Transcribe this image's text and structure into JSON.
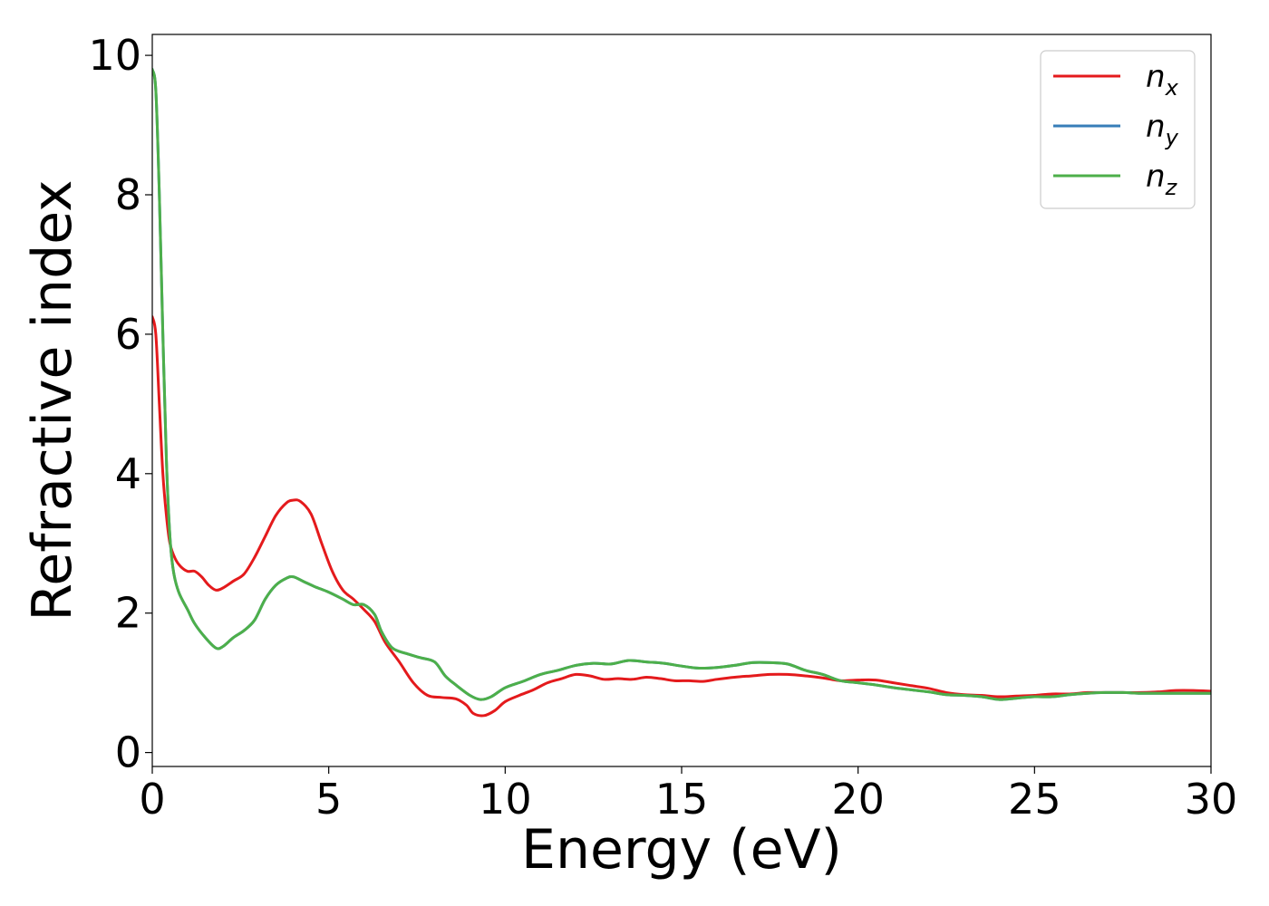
{
  "chart_data": {
    "type": "line",
    "title": "",
    "xlabel": "Energy (eV)",
    "ylabel": "Refractive index",
    "xlim": [
      0,
      30
    ],
    "ylim": [
      -0.2,
      10.3
    ],
    "xticks": [
      0,
      5,
      10,
      15,
      20,
      25,
      30
    ],
    "yticks": [
      0,
      2,
      4,
      6,
      8,
      10
    ],
    "grid": false,
    "legend_position": "top-right",
    "series": [
      {
        "name": "x",
        "legend_base": "n",
        "legend_sub": "x",
        "color": "#e41a1c",
        "points": [
          [
            0,
            6.25
          ],
          [
            0.1,
            6.0
          ],
          [
            0.2,
            5.0
          ],
          [
            0.3,
            4.0
          ],
          [
            0.4,
            3.4
          ],
          [
            0.5,
            3.0
          ],
          [
            0.65,
            2.78
          ],
          [
            0.8,
            2.67
          ],
          [
            1.0,
            2.6
          ],
          [
            1.2,
            2.6
          ],
          [
            1.4,
            2.52
          ],
          [
            1.6,
            2.4
          ],
          [
            1.8,
            2.33
          ],
          [
            2.0,
            2.36
          ],
          [
            2.3,
            2.46
          ],
          [
            2.6,
            2.56
          ],
          [
            2.9,
            2.8
          ],
          [
            3.2,
            3.1
          ],
          [
            3.5,
            3.4
          ],
          [
            3.8,
            3.58
          ],
          [
            4.0,
            3.62
          ],
          [
            4.2,
            3.6
          ],
          [
            4.5,
            3.42
          ],
          [
            4.8,
            3.0
          ],
          [
            5.1,
            2.6
          ],
          [
            5.4,
            2.33
          ],
          [
            5.7,
            2.2
          ],
          [
            6.0,
            2.05
          ],
          [
            6.3,
            1.88
          ],
          [
            6.6,
            1.58
          ],
          [
            7.0,
            1.3
          ],
          [
            7.4,
            1.0
          ],
          [
            7.8,
            0.82
          ],
          [
            8.2,
            0.79
          ],
          [
            8.6,
            0.77
          ],
          [
            8.9,
            0.68
          ],
          [
            9.1,
            0.56
          ],
          [
            9.4,
            0.53
          ],
          [
            9.7,
            0.6
          ],
          [
            10.0,
            0.73
          ],
          [
            10.4,
            0.82
          ],
          [
            10.8,
            0.9
          ],
          [
            11.2,
            1.0
          ],
          [
            11.6,
            1.06
          ],
          [
            12.0,
            1.12
          ],
          [
            12.4,
            1.1
          ],
          [
            12.8,
            1.05
          ],
          [
            13.2,
            1.06
          ],
          [
            13.6,
            1.05
          ],
          [
            14.0,
            1.08
          ],
          [
            14.4,
            1.06
          ],
          [
            14.8,
            1.03
          ],
          [
            15.2,
            1.03
          ],
          [
            15.6,
            1.02
          ],
          [
            16.0,
            1.05
          ],
          [
            16.5,
            1.08
          ],
          [
            17.0,
            1.1
          ],
          [
            17.5,
            1.12
          ],
          [
            18.0,
            1.12
          ],
          [
            18.5,
            1.1
          ],
          [
            19.0,
            1.07
          ],
          [
            19.5,
            1.03
          ],
          [
            20.0,
            1.04
          ],
          [
            20.5,
            1.04
          ],
          [
            21.0,
            1.0
          ],
          [
            21.5,
            0.96
          ],
          [
            22.0,
            0.92
          ],
          [
            22.5,
            0.86
          ],
          [
            23.0,
            0.83
          ],
          [
            23.5,
            0.82
          ],
          [
            24.0,
            0.8
          ],
          [
            24.5,
            0.81
          ],
          [
            25.0,
            0.82
          ],
          [
            25.5,
            0.84
          ],
          [
            26.0,
            0.84
          ],
          [
            26.5,
            0.86
          ],
          [
            27.0,
            0.86
          ],
          [
            27.5,
            0.86
          ],
          [
            28.0,
            0.86
          ],
          [
            28.5,
            0.87
          ],
          [
            29.0,
            0.89
          ],
          [
            29.5,
            0.89
          ],
          [
            30.0,
            0.88
          ]
        ]
      },
      {
        "name": "y",
        "legend_base": "n",
        "legend_sub": "y",
        "color": "#377eb8",
        "points": [
          [
            0,
            9.8
          ],
          [
            0.1,
            9.5
          ],
          [
            0.2,
            8.0
          ],
          [
            0.3,
            6.0
          ],
          [
            0.4,
            4.2
          ],
          [
            0.5,
            3.1
          ],
          [
            0.6,
            2.6
          ],
          [
            0.75,
            2.3
          ],
          [
            1.0,
            2.05
          ],
          [
            1.2,
            1.85
          ],
          [
            1.5,
            1.65
          ],
          [
            1.8,
            1.5
          ],
          [
            2.0,
            1.52
          ],
          [
            2.3,
            1.65
          ],
          [
            2.6,
            1.75
          ],
          [
            2.9,
            1.9
          ],
          [
            3.2,
            2.2
          ],
          [
            3.5,
            2.4
          ],
          [
            3.8,
            2.5
          ],
          [
            4.0,
            2.52
          ],
          [
            4.3,
            2.45
          ],
          [
            4.6,
            2.38
          ],
          [
            5.0,
            2.3
          ],
          [
            5.4,
            2.2
          ],
          [
            5.7,
            2.12
          ],
          [
            6.0,
            2.12
          ],
          [
            6.3,
            1.98
          ],
          [
            6.5,
            1.73
          ],
          [
            6.8,
            1.5
          ],
          [
            7.2,
            1.42
          ],
          [
            7.6,
            1.36
          ],
          [
            8.0,
            1.3
          ],
          [
            8.3,
            1.1
          ],
          [
            8.6,
            0.97
          ],
          [
            9.0,
            0.82
          ],
          [
            9.3,
            0.76
          ],
          [
            9.6,
            0.8
          ],
          [
            10.0,
            0.93
          ],
          [
            10.5,
            1.02
          ],
          [
            11.0,
            1.12
          ],
          [
            11.5,
            1.18
          ],
          [
            12.0,
            1.25
          ],
          [
            12.5,
            1.28
          ],
          [
            13.0,
            1.27
          ],
          [
            13.5,
            1.32
          ],
          [
            14.0,
            1.3
          ],
          [
            14.5,
            1.28
          ],
          [
            15.0,
            1.24
          ],
          [
            15.5,
            1.21
          ],
          [
            16.0,
            1.22
          ],
          [
            16.5,
            1.25
          ],
          [
            17.0,
            1.29
          ],
          [
            17.5,
            1.29
          ],
          [
            18.0,
            1.27
          ],
          [
            18.5,
            1.18
          ],
          [
            19.0,
            1.12
          ],
          [
            19.5,
            1.03
          ],
          [
            20.0,
            1.0
          ],
          [
            20.5,
            0.97
          ],
          [
            21.0,
            0.93
          ],
          [
            21.5,
            0.9
          ],
          [
            22.0,
            0.87
          ],
          [
            22.5,
            0.83
          ],
          [
            23.0,
            0.82
          ],
          [
            23.5,
            0.8
          ],
          [
            24.0,
            0.76
          ],
          [
            24.5,
            0.78
          ],
          [
            25.0,
            0.8
          ],
          [
            25.5,
            0.8
          ],
          [
            26.0,
            0.83
          ],
          [
            26.5,
            0.85
          ],
          [
            27.0,
            0.86
          ],
          [
            27.5,
            0.86
          ],
          [
            28.0,
            0.85
          ],
          [
            28.5,
            0.85
          ],
          [
            29.0,
            0.85
          ],
          [
            29.5,
            0.85
          ],
          [
            30.0,
            0.85
          ]
        ]
      },
      {
        "name": "z",
        "legend_base": "n",
        "legend_sub": "z",
        "color": "#4daf4a",
        "points": [
          [
            0,
            9.8
          ],
          [
            0.1,
            9.5
          ],
          [
            0.2,
            8.0
          ],
          [
            0.3,
            6.0
          ],
          [
            0.4,
            4.2
          ],
          [
            0.5,
            3.1
          ],
          [
            0.6,
            2.6
          ],
          [
            0.75,
            2.3
          ],
          [
            1.0,
            2.05
          ],
          [
            1.2,
            1.85
          ],
          [
            1.5,
            1.65
          ],
          [
            1.8,
            1.5
          ],
          [
            2.0,
            1.52
          ],
          [
            2.3,
            1.65
          ],
          [
            2.6,
            1.75
          ],
          [
            2.9,
            1.9
          ],
          [
            3.2,
            2.2
          ],
          [
            3.5,
            2.4
          ],
          [
            3.8,
            2.5
          ],
          [
            4.0,
            2.52
          ],
          [
            4.3,
            2.45
          ],
          [
            4.6,
            2.38
          ],
          [
            5.0,
            2.3
          ],
          [
            5.4,
            2.2
          ],
          [
            5.7,
            2.12
          ],
          [
            6.0,
            2.12
          ],
          [
            6.3,
            1.98
          ],
          [
            6.5,
            1.73
          ],
          [
            6.8,
            1.5
          ],
          [
            7.2,
            1.42
          ],
          [
            7.6,
            1.36
          ],
          [
            8.0,
            1.3
          ],
          [
            8.3,
            1.1
          ],
          [
            8.6,
            0.97
          ],
          [
            9.0,
            0.82
          ],
          [
            9.3,
            0.76
          ],
          [
            9.6,
            0.8
          ],
          [
            10.0,
            0.93
          ],
          [
            10.5,
            1.02
          ],
          [
            11.0,
            1.12
          ],
          [
            11.5,
            1.18
          ],
          [
            12.0,
            1.25
          ],
          [
            12.5,
            1.28
          ],
          [
            13.0,
            1.27
          ],
          [
            13.5,
            1.32
          ],
          [
            14.0,
            1.3
          ],
          [
            14.5,
            1.28
          ],
          [
            15.0,
            1.24
          ],
          [
            15.5,
            1.21
          ],
          [
            16.0,
            1.22
          ],
          [
            16.5,
            1.25
          ],
          [
            17.0,
            1.29
          ],
          [
            17.5,
            1.29
          ],
          [
            18.0,
            1.27
          ],
          [
            18.5,
            1.18
          ],
          [
            19.0,
            1.12
          ],
          [
            19.5,
            1.03
          ],
          [
            20.0,
            1.0
          ],
          [
            20.5,
            0.97
          ],
          [
            21.0,
            0.93
          ],
          [
            21.5,
            0.9
          ],
          [
            22.0,
            0.87
          ],
          [
            22.5,
            0.83
          ],
          [
            23.0,
            0.82
          ],
          [
            23.5,
            0.8
          ],
          [
            24.0,
            0.76
          ],
          [
            24.5,
            0.78
          ],
          [
            25.0,
            0.8
          ],
          [
            25.5,
            0.8
          ],
          [
            26.0,
            0.83
          ],
          [
            26.5,
            0.85
          ],
          [
            27.0,
            0.86
          ],
          [
            27.5,
            0.86
          ],
          [
            28.0,
            0.85
          ],
          [
            28.5,
            0.85
          ],
          [
            29.0,
            0.85
          ],
          [
            29.5,
            0.85
          ],
          [
            30.0,
            0.85
          ]
        ]
      }
    ]
  }
}
